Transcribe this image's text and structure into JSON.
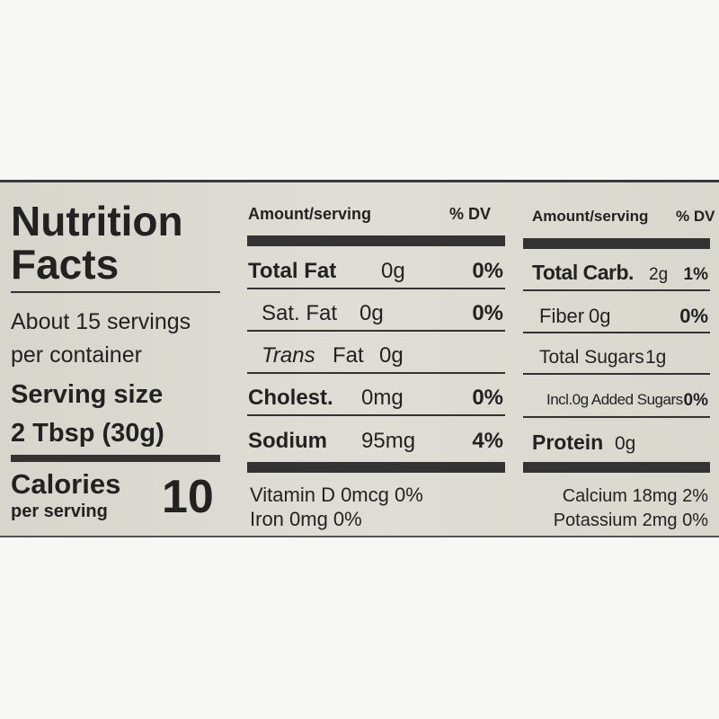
{
  "title_line1": "Nutrition",
  "title_line2": "Facts",
  "servings_line1": "About 15 servings",
  "servings_line2": "per container",
  "serving_size_label": "Serving size",
  "serving_size": "2 Tbsp (30g)",
  "calories_label": "Calories",
  "calories_sub": "per serving",
  "calories": "10",
  "left_table": {
    "header": [
      "Amount/serving",
      "% DV"
    ],
    "rows": [
      {
        "name": "Total Fat",
        "amount": "0g",
        "dv": "0%"
      },
      {
        "name": "Sat. Fat",
        "amount": "0g",
        "dv": "0%"
      },
      {
        "name_italic": "Trans",
        "name": "Fat",
        "amount": "0g"
      },
      {
        "name": "Cholest.",
        "amount": "0mg",
        "dv": "0%"
      },
      {
        "name": "Sodium",
        "amount": "95mg",
        "dv": "4%"
      }
    ]
  },
  "right_table": {
    "header": [
      "Amount/serving",
      "% DV"
    ],
    "rows": [
      {
        "name": "Total Carb.",
        "amount": "2g",
        "dv": "1%"
      },
      {
        "name": "Fiber",
        "amount": "0g",
        "dv": "0%"
      },
      {
        "name": "Total Sugars",
        "amount": "1g"
      },
      {
        "name": "Incl.0g Added Sugars",
        "dv": "0%"
      },
      {
        "name": "Protein",
        "amount": "0g"
      }
    ]
  },
  "footer_left": [
    "Vitamin D 0mcg 0%",
    "Iron 0mg 0%"
  ],
  "footer_right": [
    "Calcium 18mg 2%",
    "Potassium 2mg 0%"
  ]
}
